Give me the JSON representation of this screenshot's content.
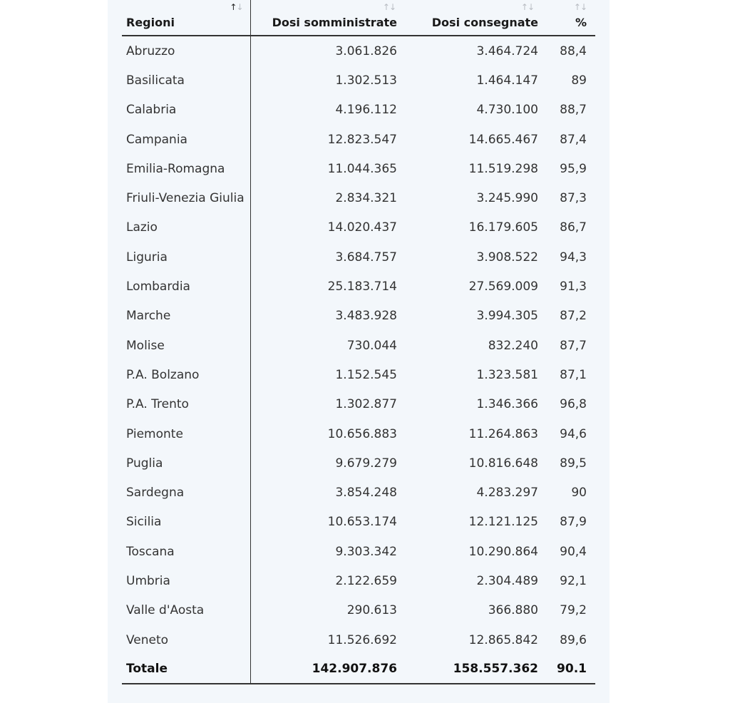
{
  "table": {
    "headers": {
      "region": "Regioni",
      "administered": "Dosi somministrate",
      "delivered": "Dosi consegnate",
      "percent": "%"
    },
    "sort_glyphs": {
      "up": "↑",
      "down": "↓"
    },
    "rows": [
      {
        "region": "Abruzzo",
        "administered": "3.061.826",
        "delivered": "3.464.724",
        "percent": "88,4"
      },
      {
        "region": "Basilicata",
        "administered": "1.302.513",
        "delivered": "1.464.147",
        "percent": "89"
      },
      {
        "region": "Calabria",
        "administered": "4.196.112",
        "delivered": "4.730.100",
        "percent": "88,7"
      },
      {
        "region": "Campania",
        "administered": "12.823.547",
        "delivered": "14.665.467",
        "percent": "87,4"
      },
      {
        "region": "Emilia-Romagna",
        "administered": "11.044.365",
        "delivered": "11.519.298",
        "percent": "95,9"
      },
      {
        "region": "Friuli-Venezia Giulia",
        "administered": "2.834.321",
        "delivered": "3.245.990",
        "percent": "87,3"
      },
      {
        "region": "Lazio",
        "administered": "14.020.437",
        "delivered": "16.179.605",
        "percent": "86,7"
      },
      {
        "region": "Liguria",
        "administered": "3.684.757",
        "delivered": "3.908.522",
        "percent": "94,3"
      },
      {
        "region": "Lombardia",
        "administered": "25.183.714",
        "delivered": "27.569.009",
        "percent": "91,3"
      },
      {
        "region": "Marche",
        "administered": "3.483.928",
        "delivered": "3.994.305",
        "percent": "87,2"
      },
      {
        "region": "Molise",
        "administered": "730.044",
        "delivered": "832.240",
        "percent": "87,7"
      },
      {
        "region": "P.A. Bolzano",
        "administered": "1.152.545",
        "delivered": "1.323.581",
        "percent": "87,1"
      },
      {
        "region": "P.A. Trento",
        "administered": "1.302.877",
        "delivered": "1.346.366",
        "percent": "96,8"
      },
      {
        "region": "Piemonte",
        "administered": "10.656.883",
        "delivered": "11.264.863",
        "percent": "94,6"
      },
      {
        "region": "Puglia",
        "administered": "9.679.279",
        "delivered": "10.816.648",
        "percent": "89,5"
      },
      {
        "region": "Sardegna",
        "administered": "3.854.248",
        "delivered": "4.283.297",
        "percent": "90"
      },
      {
        "region": "Sicilia",
        "administered": "10.653.174",
        "delivered": "12.121.125",
        "percent": "87,9"
      },
      {
        "region": "Toscana",
        "administered": "9.303.342",
        "delivered": "10.290.864",
        "percent": "90,4"
      },
      {
        "region": "Umbria",
        "administered": "2.122.659",
        "delivered": "2.304.489",
        "percent": "92,1"
      },
      {
        "region": "Valle d'Aosta",
        "administered": "290.613",
        "delivered": "366.880",
        "percent": "79,2"
      },
      {
        "region": "Veneto",
        "administered": "11.526.692",
        "delivered": "12.865.842",
        "percent": "89,6"
      }
    ],
    "total": {
      "region": "Totale",
      "administered": "142.907.876",
      "delivered": "158.557.362",
      "percent": "90.1"
    }
  }
}
